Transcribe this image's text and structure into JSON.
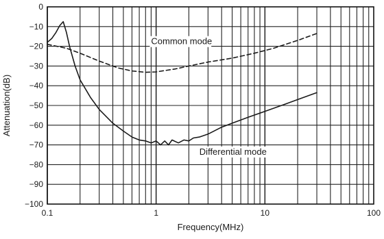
{
  "chart_data": {
    "type": "line",
    "title": "",
    "xlabel": "Frequency(MHz)",
    "ylabel": "Attenuation(dB)",
    "xscale": "log",
    "xlim": [
      0.1,
      100
    ],
    "ylim": [
      -100,
      0
    ],
    "grid": true,
    "legend": "none",
    "x_ticks": [
      0.1,
      1,
      10,
      100
    ],
    "x_tick_labels": [
      "0.1",
      "1",
      "10",
      "100"
    ],
    "y_ticks": [
      0,
      -10,
      -20,
      -30,
      -40,
      -50,
      -60,
      -70,
      -80,
      -90,
      -100
    ],
    "y_tick_labels": [
      "0",
      "−10",
      "−20",
      "−30",
      "−40",
      "−50",
      "−60",
      "−70",
      "−80",
      "−90",
      "−100"
    ],
    "series": [
      {
        "name": "Common mode",
        "style": "dashed",
        "color": "#1a1a1a",
        "x": [
          0.1,
          0.15,
          0.2,
          0.3,
          0.45,
          0.6,
          0.8,
          1.0,
          1.5,
          2.0,
          3.0,
          5.0,
          8.0,
          12.0,
          20.0,
          30.0
        ],
        "y": [
          -19,
          -21,
          -23.5,
          -27.5,
          -31,
          -32.5,
          -33.2,
          -33,
          -31.5,
          -30,
          -28,
          -26,
          -23.5,
          -21,
          -17,
          -13.5
        ]
      },
      {
        "name": "Differential mode",
        "style": "solid",
        "color": "#1a1a1a",
        "x": [
          0.1,
          0.11,
          0.12,
          0.13,
          0.14,
          0.15,
          0.16,
          0.18,
          0.2,
          0.25,
          0.3,
          0.4,
          0.5,
          0.6,
          0.7,
          0.8,
          0.9,
          1.0,
          1.1,
          1.2,
          1.3,
          1.4,
          1.6,
          1.8,
          2.0,
          2.2,
          2.5,
          3.0,
          4.0,
          5.0,
          7.0,
          10.0,
          15.0,
          20.0,
          30.0
        ],
        "y": [
          -18,
          -16,
          -13,
          -9.5,
          -7.5,
          -13,
          -20,
          -30,
          -37,
          -46,
          -52,
          -59,
          -63,
          -66,
          -67.5,
          -68,
          -69,
          -68,
          -70,
          -68,
          -70,
          -67.5,
          -69,
          -67.5,
          -68,
          -66.5,
          -66,
          -64.5,
          -61,
          -59,
          -56,
          -53,
          -49.5,
          -47,
          -43.5
        ]
      }
    ],
    "annotations": [
      {
        "text": "Common mode",
        "x": 0.9,
        "y": -19
      },
      {
        "text": "Differential mode",
        "x": 2.5,
        "y": -75
      }
    ]
  }
}
